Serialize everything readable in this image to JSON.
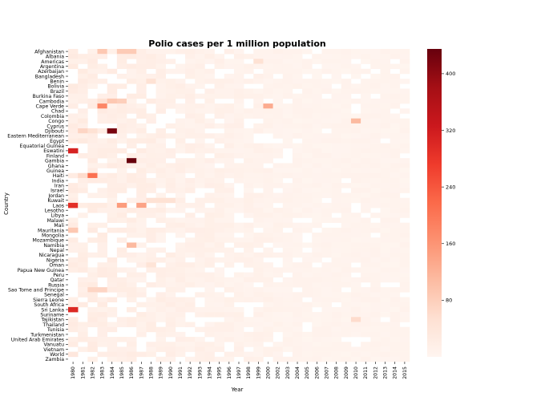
{
  "chart_data": {
    "type": "heatmap",
    "title": "Polio cases per 1 million population",
    "xlabel": "Year",
    "ylabel": "Country",
    "colormap": "Reds",
    "colorbar": {
      "min": 0,
      "max": 435,
      "ticks": [
        80,
        160,
        240,
        320,
        400
      ]
    },
    "years": [
      "1980",
      "1981",
      "1982",
      "1983",
      "1984",
      "1985",
      "1986",
      "1987",
      "1988",
      "1989",
      "1990",
      "1991",
      "1992",
      "1993",
      "1994",
      "1995",
      "1996",
      "1997",
      "1998",
      "1999",
      "2000",
      "2002",
      "2003",
      "2004",
      "2005",
      "2006",
      "2007",
      "2008",
      "2009",
      "2010",
      "2011",
      "2012",
      "2013",
      "2014",
      "2015"
    ],
    "countries": [
      "Afghanistan",
      "Albania",
      "Americas",
      "Argentina",
      "Azerbaijan",
      "Bangladesh",
      "Benin",
      "Bolivia",
      "Brazil",
      "Burkina Faso",
      "Cambodia",
      "Cape Verde",
      "Chad",
      "Colombia",
      "Congo",
      "Cyprus",
      "Djibouti",
      "Eastern Mediterranean",
      "Egypt",
      "Equatorial Guinea",
      "Eswatini",
      "Finland",
      "Gambia",
      "Ghana",
      "Guinea",
      "Haiti",
      "India",
      "Iran",
      "Israel",
      "Jordan",
      "Kuwait",
      "Laos",
      "Lesotho",
      "Libya",
      "Malawi",
      "Mali",
      "Mauritania",
      "Mongolia",
      "Mozambique",
      "Namibia",
      "Nepal",
      "Nicaragua",
      "Nigeria",
      "Oman",
      "Papua New Guinea",
      "Peru",
      "Qatar",
      "Russia",
      "Sao Tome and Principe",
      "Senegal",
      "Sierra Leone",
      "South Africa",
      "Sri Lanka",
      "Suriname",
      "Tajikistan",
      "Thailand",
      "Tunisia",
      "Turkmenistan",
      "United Arab Emirates",
      "Vanuatu",
      "Vietnam",
      "World",
      "Zambia"
    ],
    "notable_cells": [
      {
        "country": "Djibouti",
        "year": "1984",
        "value": 420
      },
      {
        "country": "Gambia",
        "year": "1986",
        "value": 435
      },
      {
        "country": "Eswatini",
        "year": "1980",
        "value": 310
      },
      {
        "country": "Laos",
        "year": "1980",
        "value": 290
      },
      {
        "country": "Sri Lanka",
        "year": "1980",
        "value": 300
      },
      {
        "country": "Haiti",
        "year": "1982",
        "value": 210
      },
      {
        "country": "Cape Verde",
        "year": "1983",
        "value": 180
      },
      {
        "country": "Laos",
        "year": "1985",
        "value": 150
      },
      {
        "country": "Laos",
        "year": "1987",
        "value": 140
      },
      {
        "country": "Cape Verde",
        "year": "2000",
        "value": 130
      },
      {
        "country": "Congo",
        "year": "2010",
        "value": 110
      },
      {
        "country": "Namibia",
        "year": "1986",
        "value": 110
      },
      {
        "country": "Afghanistan",
        "year": "1983",
        "value": 90
      },
      {
        "country": "Afghanistan",
        "year": "1985",
        "value": 85
      },
      {
        "country": "Afghanistan",
        "year": "1986",
        "value": 85
      },
      {
        "country": "Cambodia",
        "year": "1984",
        "value": 90
      },
      {
        "country": "Cambodia",
        "year": "1985",
        "value": 80
      },
      {
        "country": "Mauritania",
        "year": "1980",
        "value": 90
      },
      {
        "country": "Haiti",
        "year": "1981",
        "value": 60
      },
      {
        "country": "Djibouti",
        "year": "1981",
        "value": 70
      },
      {
        "country": "Djibouti",
        "year": "1982",
        "value": 50
      },
      {
        "country": "Sao Tome and Principe",
        "year": "1982",
        "value": 70
      },
      {
        "country": "Sao Tome and Principe",
        "year": "1983",
        "value": 70
      },
      {
        "country": "Kuwait",
        "year": "1988",
        "value": 50
      },
      {
        "country": "Kuwait",
        "year": "1989",
        "value": 50
      },
      {
        "country": "Kuwait",
        "year": "1990",
        "value": 50
      },
      {
        "country": "Americas",
        "year": "1999",
        "value": 50
      },
      {
        "country": "Benin",
        "year": "1988",
        "value": 50
      },
      {
        "country": "Oman",
        "year": "1988",
        "value": 45
      },
      {
        "country": "Tajikistan",
        "year": "2010",
        "value": 60
      },
      {
        "country": "World",
        "year": "1980",
        "value": 35
      },
      {
        "country": "Cambodia",
        "year": "1983",
        "value": 50
      }
    ],
    "background_level_note": "remaining cells 0-30"
  }
}
